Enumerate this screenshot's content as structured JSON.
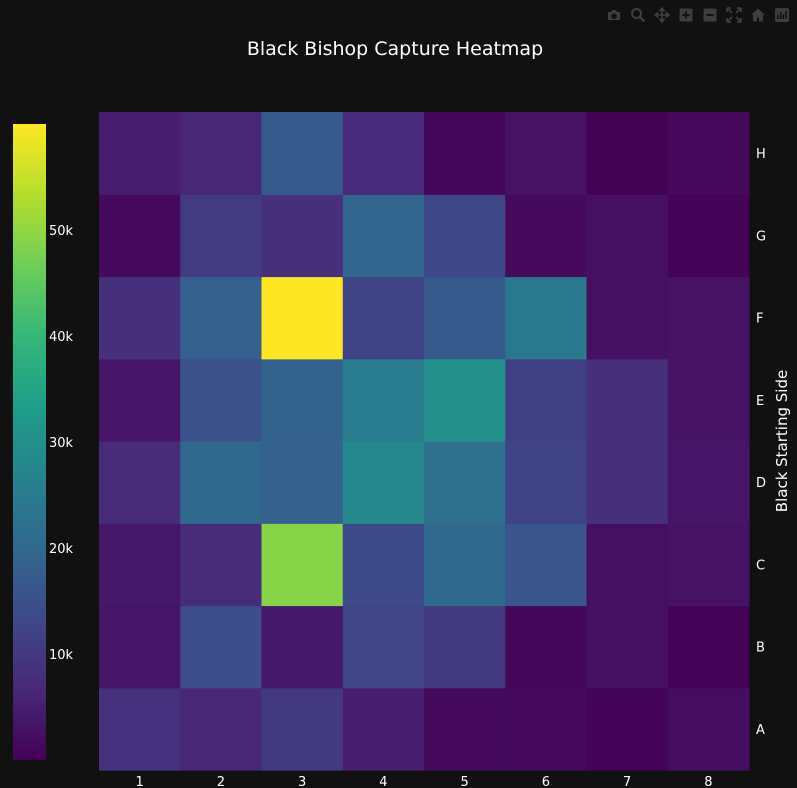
{
  "modebar": {
    "buttons": [
      {
        "name": "camera-icon"
      },
      {
        "name": "zoom-icon"
      },
      {
        "name": "pan-icon"
      },
      {
        "name": "zoom-in-icon"
      },
      {
        "name": "zoom-out-icon"
      },
      {
        "name": "autoscale-icon"
      },
      {
        "name": "home-icon"
      },
      {
        "name": "plotly-logo-icon"
      }
    ]
  },
  "chart_data": {
    "type": "heatmap",
    "title": "Black Bishop Capture Heatmap",
    "xlabel": "",
    "ylabel": "Black Starting Side",
    "x": [
      "1",
      "2",
      "3",
      "4",
      "5",
      "6",
      "7",
      "8"
    ],
    "y": [
      "A",
      "B",
      "C",
      "D",
      "E",
      "F",
      "G",
      "H"
    ],
    "z": [
      [
        8500,
        6500,
        10000,
        5000,
        1500,
        1500,
        500,
        2000
      ],
      [
        3500,
        14000,
        4000,
        12500,
        10000,
        1000,
        2500,
        400
      ],
      [
        4000,
        7500,
        49000,
        13500,
        20000,
        16000,
        2500,
        3000
      ],
      [
        7500,
        20000,
        18500,
        28000,
        22000,
        12000,
        8000,
        3500
      ],
      [
        3500,
        15000,
        19000,
        25000,
        30000,
        11500,
        8000,
        3000
      ],
      [
        8000,
        18000,
        60000,
        12000,
        17000,
        24000,
        2500,
        3000
      ],
      [
        1500,
        10500,
        8000,
        19500,
        13000,
        1500,
        2500,
        300
      ],
      [
        5000,
        6500,
        17000,
        7000,
        1000,
        3000,
        200,
        1500
      ]
    ],
    "zmin": 0,
    "zmax": 60000,
    "colorscale": "Viridis",
    "colorbar": {
      "ticks": [
        10000,
        20000,
        30000,
        40000,
        50000
      ],
      "ticktext": [
        "10k",
        "20k",
        "30k",
        "40k",
        "50k"
      ],
      "placement": "left"
    },
    "yaxis_side": "right",
    "colors": {
      "background": "#111111",
      "text": "#ffffff",
      "modebar": "#3d3d3d"
    }
  }
}
